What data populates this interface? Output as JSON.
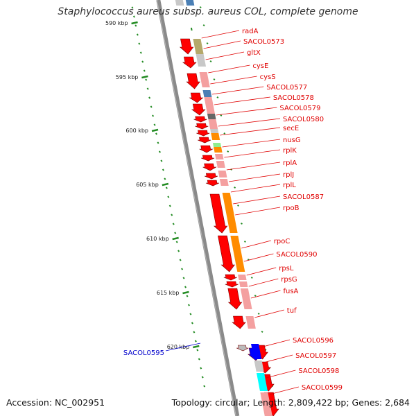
{
  "title": "Staphylococcus aureus subsp. aureus COL, complete genome",
  "accession": "Accession: NC_002951",
  "topology": "Topology: circular; Length: 2,809,422 bp; Genes: 2,684",
  "scale_ticks": [
    "590 kbp",
    "595 kbp",
    "600 kbp",
    "605 kbp",
    "610 kbp",
    "615 kbp",
    "620 kbp"
  ],
  "colors": {
    "label_red": "#e00000",
    "label_blue": "#0000cc",
    "backbone": "#888888",
    "tick_green": "#228b22"
  },
  "genes": [
    {
      "name": "radA",
      "color": "red"
    },
    {
      "name": "SACOL0573",
      "color": "red"
    },
    {
      "name": "gltX",
      "color": "red"
    },
    {
      "name": "cysE",
      "color": "red"
    },
    {
      "name": "cysS",
      "color": "red"
    },
    {
      "name": "SACOL0577",
      "color": "red"
    },
    {
      "name": "SACOL0578",
      "color": "red"
    },
    {
      "name": "SACOL0579",
      "color": "red"
    },
    {
      "name": "SACOL0580",
      "color": "red"
    },
    {
      "name": "secE",
      "color": "red"
    },
    {
      "name": "nusG",
      "color": "red"
    },
    {
      "name": "rplK",
      "color": "red"
    },
    {
      "name": "rplA",
      "color": "red"
    },
    {
      "name": "rplJ",
      "color": "red"
    },
    {
      "name": "rplL",
      "color": "red"
    },
    {
      "name": "SACOL0587",
      "color": "red"
    },
    {
      "name": "rpoB",
      "color": "red"
    },
    {
      "name": "rpoC",
      "color": "red"
    },
    {
      "name": "SACOL0590",
      "color": "red"
    },
    {
      "name": "rpsL",
      "color": "red"
    },
    {
      "name": "rpsG",
      "color": "red"
    },
    {
      "name": "fusA",
      "color": "red"
    },
    {
      "name": "tuf",
      "color": "red"
    },
    {
      "name": "SACOL0595",
      "color": "blue"
    },
    {
      "name": "SACOL0596",
      "color": "red"
    },
    {
      "name": "SACOL0597",
      "color": "red"
    },
    {
      "name": "SACOL0598",
      "color": "red"
    },
    {
      "name": "SACOL0599",
      "color": "red"
    }
  ]
}
